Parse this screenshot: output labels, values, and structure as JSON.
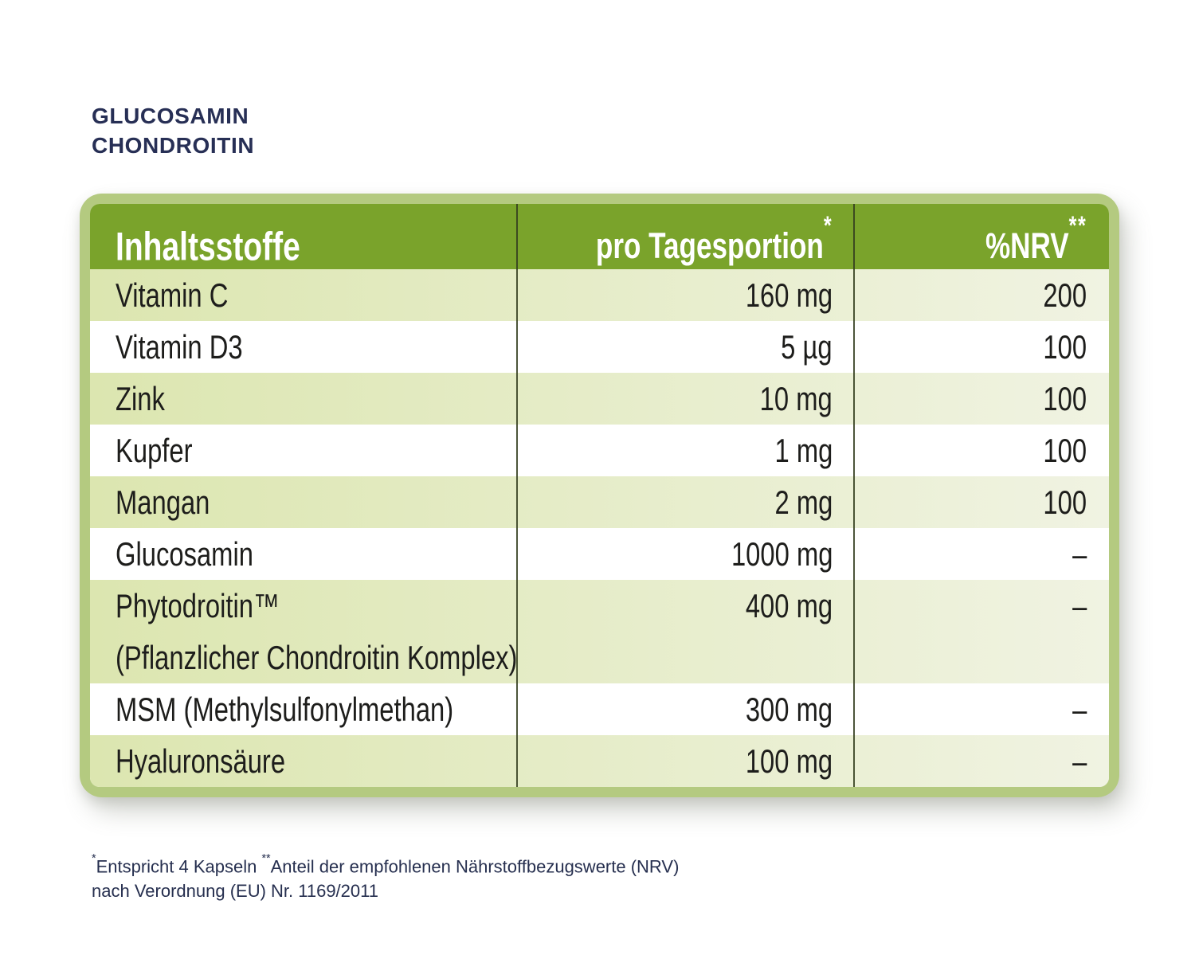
{
  "header": {
    "title_line1": "GLUCOSAMIN",
    "title_line2": "CHONDROITIN"
  },
  "table": {
    "columns": [
      {
        "label": "Inhaltsstoffe",
        "sup": ""
      },
      {
        "label": "pro Tagesportion",
        "sup": "*"
      },
      {
        "label": "%NRV",
        "sup": "**"
      }
    ],
    "rows": [
      {
        "name": "Vitamin C",
        "amount": "160 mg",
        "nrv": "200",
        "shaded": true
      },
      {
        "name": "Vitamin D3",
        "amount": "5 µg",
        "nrv": "100",
        "shaded": false
      },
      {
        "name": "Zink",
        "amount": "10 mg",
        "nrv": "100",
        "shaded": true
      },
      {
        "name": "Kupfer",
        "amount": "1 mg",
        "nrv": "100",
        "shaded": false
      },
      {
        "name": "Mangan",
        "amount": "2 mg",
        "nrv": "100",
        "shaded": true
      },
      {
        "name": "Glucosamin",
        "amount": "1000 mg",
        "nrv": "–",
        "shaded": false
      },
      {
        "name": "Phytodroitin™",
        "name_sub": "(Pflanzlicher Chondroitin Komplex)",
        "amount": "400 mg",
        "nrv": "–",
        "shaded": true
      },
      {
        "name": "MSM (Methylsulfonylmethan)",
        "amount": "300 mg",
        "nrv": "–",
        "shaded": false
      },
      {
        "name": "Hyaluronsäure",
        "amount": "100 mg",
        "nrv": "–",
        "shaded": true
      }
    ]
  },
  "footnote": {
    "sup1": "*",
    "text1": "Entspricht 4 Kapseln ",
    "sup2": "**",
    "text2": "Anteil der empfohlenen Nährstoffbezugswerte (NRV)",
    "line2": "nach Verordnung (EU) Nr. 1169/2011"
  },
  "colors": {
    "header_green": "#7aa32b",
    "frame_green": "#b4ca80",
    "row_green_left": "#dce6b0",
    "row_green_right": "#f0f3e2",
    "title_navy": "#272f55",
    "footnote_navy": "#262f4f",
    "row_text": "#1d1d1b",
    "divider": "#333d1f"
  }
}
